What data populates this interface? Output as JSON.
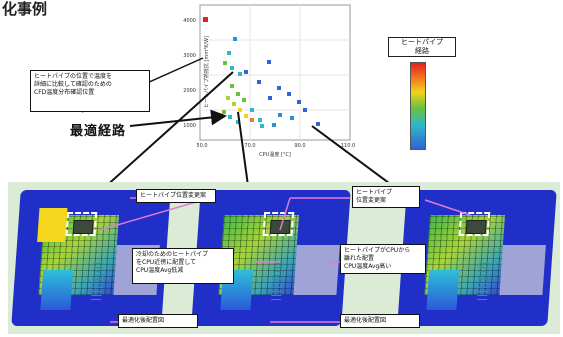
{
  "page": {
    "title": "化事例"
  },
  "plot": {
    "xlabel": "CPU温度 [°C]",
    "ylabel": "ヒートパイプ熱抵抗 [mm²K/W]",
    "xticks": [
      "50.0",
      "70.0",
      "90.0",
      "110.0"
    ],
    "yticks": [
      "4000",
      "3000",
      "2000",
      "1000"
    ]
  },
  "legend": {
    "title": "ヒートパイプ\n経路"
  },
  "labels": {
    "top_note": "ヒートパイプの位置で温度を\n詳細に比較して確認のための\nCFD温度分布確認位置",
    "black_label": "最適経路",
    "box_1": "ヒートパイプ位置変更案",
    "box_2": "ヒートパイプ\n位置変更案",
    "box_3": "冷却のためのヒートパイプ\nをCPU近傍に配置して\nCPU温度Avg低減",
    "box_4": "ヒートパイプがCPUから\n離れた配置\nCPU温度Avg高い",
    "box_5": "最適化後配置図",
    "box_6": "最適化後配置図"
  },
  "colors": {
    "hot": "#e0211f",
    "warm": "#f3d21a",
    "mid": "#6cc23b",
    "cool": "#2fb8c6",
    "cold": "#2f63d6",
    "board": "#1f2fc7",
    "band": "#dcebd5"
  }
}
